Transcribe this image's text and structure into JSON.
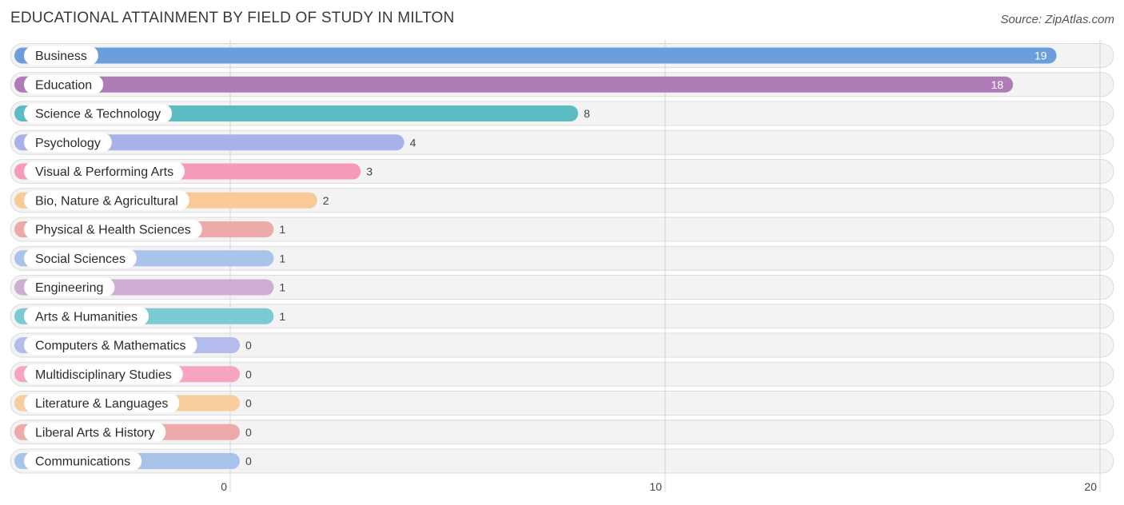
{
  "header": {
    "title": "EDUCATIONAL ATTAINMENT BY FIELD OF STUDY IN MILTON",
    "source": "Source: ZipAtlas.com"
  },
  "chart_data": {
    "type": "bar",
    "orientation": "horizontal",
    "title": "EDUCATIONAL ATTAINMENT BY FIELD OF STUDY IN MILTON",
    "xlim": [
      0,
      20
    ],
    "xticks": [
      0,
      10,
      20
    ],
    "grid": true,
    "categories": [
      "Business",
      "Education",
      "Science & Technology",
      "Psychology",
      "Visual & Performing Arts",
      "Bio, Nature & Agricultural",
      "Physical & Health Sciences",
      "Social Sciences",
      "Engineering",
      "Arts & Humanities",
      "Computers & Mathematics",
      "Multidisciplinary Studies",
      "Literature & Languages",
      "Liberal Arts & History",
      "Communications"
    ],
    "values": [
      19,
      18,
      8,
      4,
      3,
      2,
      1,
      1,
      1,
      1,
      0,
      0,
      0,
      0,
      0
    ],
    "colors": [
      "#6a9fdc",
      "#b07cb8",
      "#5bbcc4",
      "#a9b2e6",
      "#f59ab8",
      "#f9c997",
      "#eeaaa8",
      "#a8c4ea",
      "#cdaed2",
      "#7ccbd2",
      "#b3bcec",
      "#f6a4c2",
      "#f8cd9e",
      "#eeaaa8",
      "#a8c4ea"
    ]
  }
}
